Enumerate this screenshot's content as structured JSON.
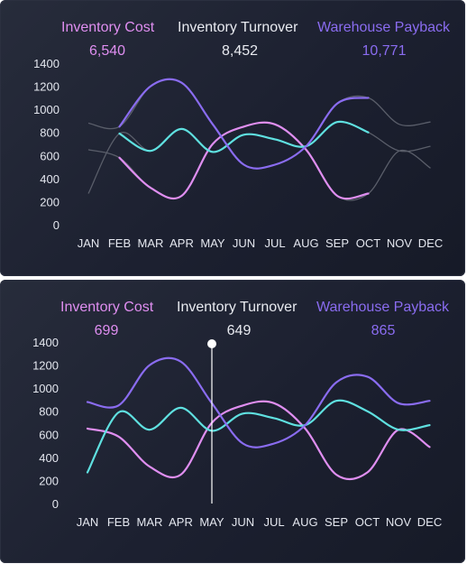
{
  "colors": {
    "inventory_cost": "#df8ef0",
    "inventory_turnover": "#5fe0e0",
    "warehouse_payback": "#8a6cf0",
    "turnover_label": "#e8eaf0",
    "faded_line": "#5a5e6a",
    "cursor": "#ffffff"
  },
  "panels": [
    {
      "kpis": [
        {
          "label": "Inventory Cost",
          "value": "6,540"
        },
        {
          "label": "Inventory Turnover",
          "value": "8,452"
        },
        {
          "label": "Warehouse Payback",
          "value": "10,771"
        }
      ],
      "highlight_range": [
        "FEB",
        "OCT"
      ],
      "cursor_month": null
    },
    {
      "kpis": [
        {
          "label": "Inventory Cost",
          "value": "699"
        },
        {
          "label": "Inventory Turnover",
          "value": "649"
        },
        {
          "label": "Warehouse Payback",
          "value": "865"
        }
      ],
      "highlight_range": [
        "JAN",
        "DEC"
      ],
      "cursor_month": "MAY"
    }
  ],
  "chart_data": {
    "type": "line",
    "categories": [
      "JAN",
      "FEB",
      "MAR",
      "APR",
      "MAY",
      "JUN",
      "JUL",
      "AUG",
      "SEP",
      "OCT",
      "NOV",
      "DEC"
    ],
    "ylim": [
      0,
      1400
    ],
    "yticks": [
      0,
      200,
      400,
      600,
      800,
      1000,
      1200,
      1400
    ],
    "series": [
      {
        "name": "Inventory Cost",
        "values": [
          650,
          580,
          320,
          250,
          700,
          850,
          870,
          650,
          250,
          270,
          640,
          490
        ]
      },
      {
        "name": "Inventory Turnover",
        "values": [
          270,
          790,
          640,
          830,
          630,
          780,
          740,
          680,
          890,
          800,
          640,
          680
        ]
      },
      {
        "name": "Warehouse Payback",
        "values": [
          880,
          850,
          1200,
          1230,
          870,
          520,
          520,
          680,
          1050,
          1100,
          870,
          890
        ]
      }
    ]
  }
}
